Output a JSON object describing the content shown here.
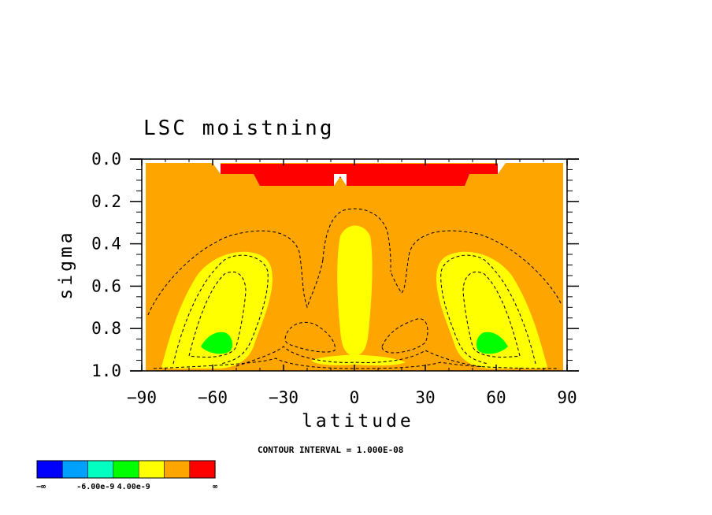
{
  "chart_data": {
    "type": "contour",
    "title": "LSC moistning",
    "xlabel": "latitude",
    "ylabel": "sigma",
    "xlim": [
      -90,
      90
    ],
    "ylim": [
      1.0,
      0.0
    ],
    "x_ticks": [
      -90,
      -60,
      -30,
      0,
      30,
      60,
      90
    ],
    "x_tick_labels": [
      "−90",
      "−60",
      "−30",
      "0",
      "30",
      "60",
      "90"
    ],
    "y_ticks": [
      0.0,
      0.2,
      0.4,
      0.6,
      0.8,
      1.0
    ],
    "y_tick_labels": [
      "0.0",
      "0.2",
      "0.4",
      "0.6",
      "0.8",
      "1.0"
    ],
    "contour_interval_label": "CONTOUR INTERVAL = 1.000E-08",
    "colorbar": {
      "colors": [
        "#0000ff",
        "#00a0ff",
        "#00ffc0",
        "#00ff00",
        "#ffff00",
        "#ffa500",
        "#ff0000"
      ],
      "labels": [
        "−∞",
        "-6.00e-9",
        "4.00e-9",
        "∞"
      ]
    },
    "regions": {
      "background_level": "orange",
      "upper_band_level": "red",
      "subtropical_maxima_level": "yellow",
      "peak_level": "green",
      "peak_latitudes": [
        -57,
        57
      ],
      "peak_sigma": 0.87
    }
  }
}
